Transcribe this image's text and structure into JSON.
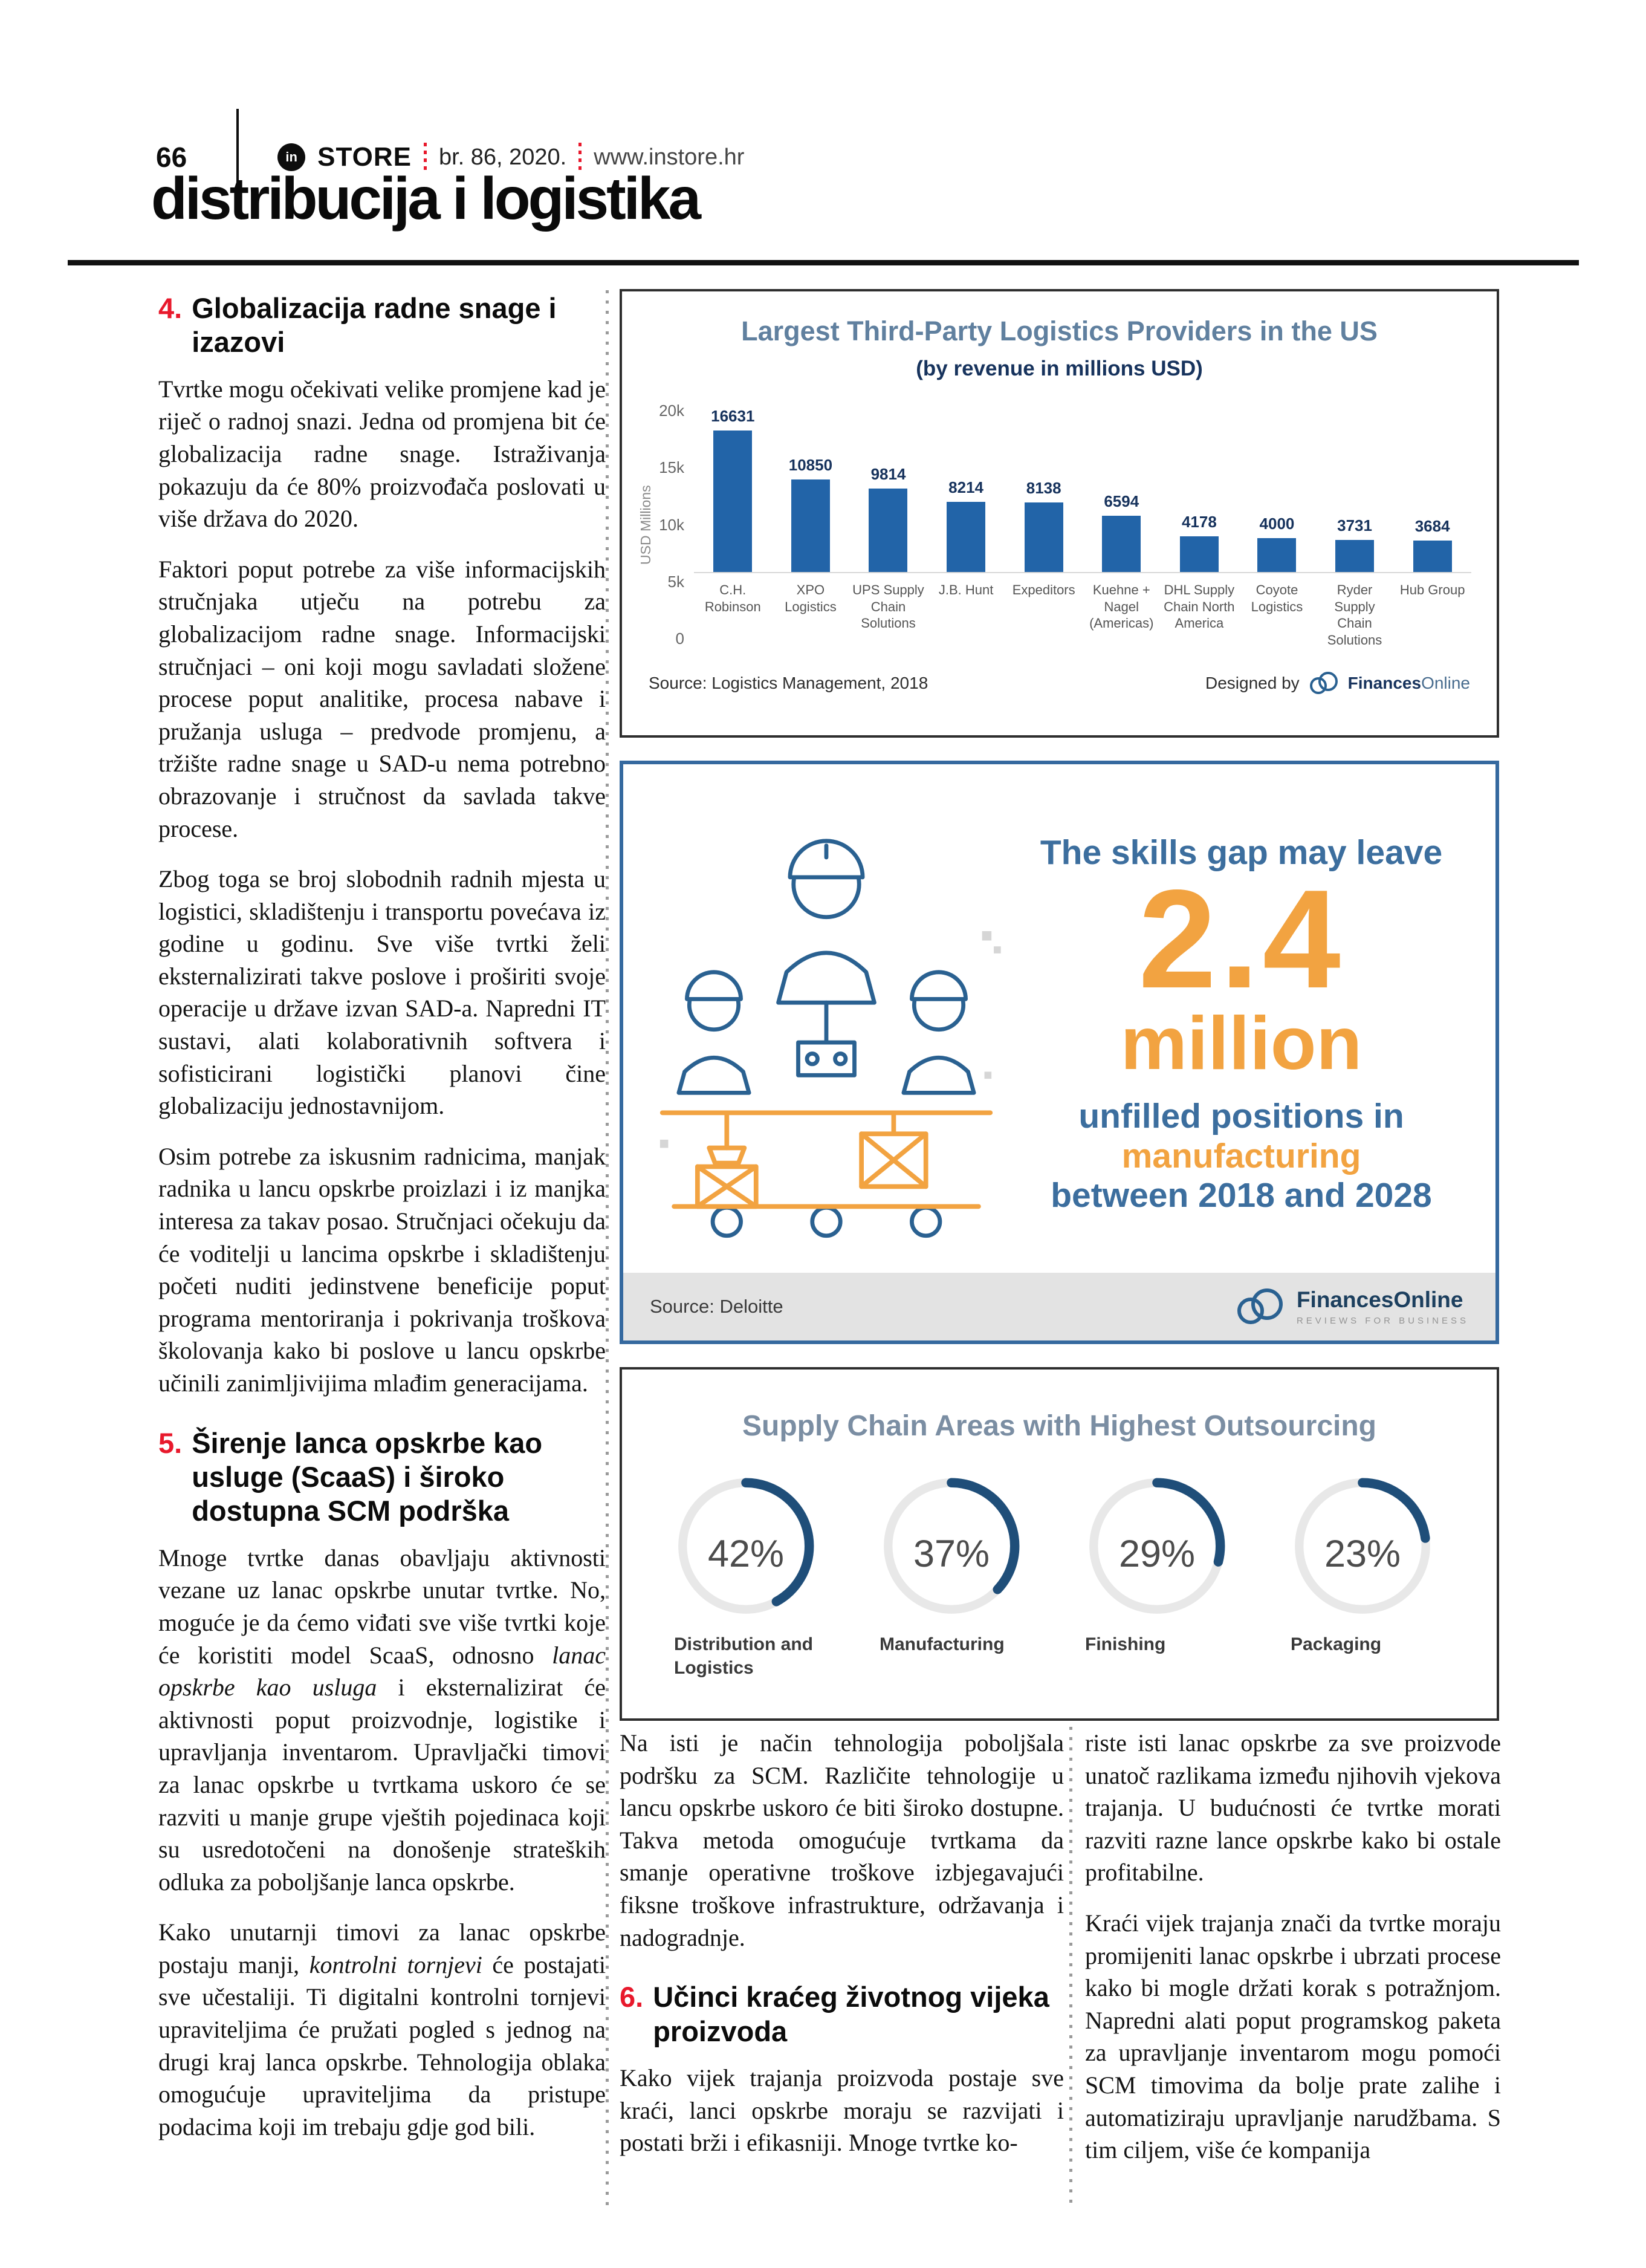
{
  "header": {
    "page_number": "66",
    "brand_badge": "in",
    "brand": "STORE",
    "issue": "br. 86, 2020.",
    "website": "www.instore.hr",
    "accent_red": "#e8192c"
  },
  "page_title": "distribucija i logistika",
  "articles": {
    "left": [
      {
        "type": "heading",
        "number": "4.",
        "text": "Globalizacija radne snage i izazovi"
      },
      {
        "type": "p",
        "segs": [
          {
            "t": "Tvrtke mogu očekivati velike promjene kad je riječ o radnoj snazi. Jedna od promjena bit će globalizacija radne snage. Istraživanja pokazuju da će 80% proizvođača poslovati u više država do 2020."
          }
        ]
      },
      {
        "type": "p",
        "segs": [
          {
            "t": "Faktori poput potrebe za više informacijskih stručnjaka utječu na potrebu za globalizacijom radne snage. Informacijski stručnjaci – oni koji mogu savladati složene procese poput analitike, procesa nabave i pružanja usluga – predvode promjenu, a tržište radne snage u SAD-u nema potrebno obrazovanje i stručnost da savlada takve procese."
          }
        ]
      },
      {
        "type": "p",
        "segs": [
          {
            "t": "Zbog toga se broj slobodnih radnih mjesta u logistici, skladištenju i transportu povećava iz godine u godinu. Sve više tvrtki želi eksternalizirati takve poslove i proširiti svoje operacije u države izvan SAD-a. Napredni IT sustavi, alati kolaborativnih softvera i sofisticirani logistički planovi čine globalizaciju jednostavnijom."
          }
        ]
      },
      {
        "type": "p",
        "segs": [
          {
            "t": "Osim potrebe za iskusnim radnicima, manjak radnika u lancu opskrbe proizlazi i iz manjka interesa za takav posao. Stručnjaci očekuju da će voditelji u lancima opskrbe i skladištenju početi nuditi jedinstvene beneficije poput programa mentoriranja i pokrivanja troškova školovanja kako bi poslove u lancu opskrbe učinili zanimljivijima mlađim generacijama."
          }
        ]
      },
      {
        "type": "heading",
        "number": "5.",
        "text": "Širenje lanca opskrbe kao usluge (ScaaS) i široko dostupna SCM podrška"
      },
      {
        "type": "p",
        "segs": [
          {
            "t": "Mnoge tvrtke danas obavljaju aktivnosti vezane uz lanac opskrbe unutar tvrtke. No, moguće je da ćemo viđati sve više tvrtki koje će koristiti model ScaaS, odnosno "
          },
          {
            "t": "lanac opskrbe kao usluga",
            "i": true
          },
          {
            "t": " i eksternalizirat će aktivnosti poput proizvodnje, logistike i upravljanja inventarom. Upravljački timovi za lanac opskrbe u tvrtkama uskoro će se razviti u manje grupe vještih pojedinaca koji su usredotočeni na donošenje strateških odluka za poboljšanje lanca opskrbe."
          }
        ]
      },
      {
        "type": "p",
        "segs": [
          {
            "t": "Kako unutarnji timovi za lanac opskrbe postaju manji, "
          },
          {
            "t": "kontrolni tornjevi",
            "i": true
          },
          {
            "t": " će postajati sve učestaliji. Ti digitalni kontrolni tornjevi upraviteljima će pružati pogled s jednog na drugi kraj lanca opskrbe. Tehnologija oblaka omogućuje upraviteljima da pristupe podacima koji im trebaju gdje god bili."
          }
        ]
      }
    ],
    "middle": [
      {
        "type": "p",
        "segs": [
          {
            "t": "Na isti je način tehnologija poboljšala podršku za SCM. Različite tehnologije u lancu opskrbe uskoro će biti široko dostupne. Takva metoda omogućuje tvrtkama da smanje operativne troškove izbjegavajući fiksne troškove infrastrukture, održavanja i nadogradnje."
          }
        ]
      },
      {
        "type": "heading",
        "number": "6.",
        "text": "Učinci kraćeg životnog vijeka proizvoda"
      },
      {
        "type": "p",
        "segs": [
          {
            "t": "Kako vijek trajanja proizvoda postaje sve kraći, lanci opskrbe moraju se razvijati i postati brži i efikasniji. Mnoge tvrtke ko-"
          }
        ]
      }
    ],
    "right": [
      {
        "type": "p",
        "segs": [
          {
            "t": "riste isti lanac opskrbe za sve proizvode unatoč razlikama između njihovih vjekova trajanja. U budućnosti će tvrtke morati razviti razne lance opskrbe kako bi ostale profitabilne."
          }
        ]
      },
      {
        "type": "p",
        "segs": [
          {
            "t": "Kraći vijek trajanja znači da tvrtke moraju promijeniti lanac opskrbe i ubrzati procese kako bi mogle držati korak s potražnjom. Napredni alati poput programskog paketa za upravljanje inventarom mogu pomoći SCM timovima da bolje prate zalihe i automatiziraju upravljanje narudžbama. S tim ciljem, više će kompanija"
          }
        ]
      }
    ]
  },
  "chart_data": [
    {
      "type": "bar",
      "title": "Largest Third-Party Logistics Providers in the US",
      "subtitle": "(by revenue in millions USD)",
      "ylabel": "USD Millions",
      "ylim": [
        0,
        20000
      ],
      "yticks": [
        "20k",
        "15k",
        "10k",
        "5k",
        "0"
      ],
      "categories": [
        "C.H. Robinson",
        "XPO Logistics",
        "UPS Supply Chain Solutions",
        "J.B. Hunt",
        "Expeditors",
        "Kuehne + Nagel (Americas)",
        "DHL Supply Chain North America",
        "Coyote Logistics",
        "Ryder Supply Chain Solutions",
        "Hub Group"
      ],
      "values": [
        16631,
        10850,
        9814,
        8214,
        8138,
        6594,
        4178,
        4000,
        3731,
        3684
      ],
      "bar_color": "#2264a8",
      "grid": false,
      "source": "Source: Logistics Management, 2018",
      "credit": "Designed by",
      "credit_brand_bold": "Finances",
      "credit_brand_light": "Online"
    },
    {
      "type": "infographic",
      "lines": [
        {
          "text": "The skills gap may leave",
          "color": "blue",
          "size": "normal"
        },
        {
          "text": "2.4",
          "color": "orange",
          "size": "huge"
        },
        {
          "text": "million",
          "color": "orange",
          "size": "large"
        },
        {
          "text": "unfilled positions in",
          "color": "blue",
          "size": "normal"
        },
        {
          "text": "manufacturing",
          "color": "orange",
          "size": "normal"
        },
        {
          "text": "between 2018 and 2028",
          "color": "blue",
          "size": "normal"
        }
      ],
      "colors": {
        "blue": "#3c6e9e",
        "orange": "#f2a341"
      },
      "source": "Source: Deloitte",
      "brand": "FinancesOnline",
      "brand_tagline": "REVIEWS FOR BUSINESS"
    },
    {
      "type": "donut",
      "title": "Supply Chain Areas with Highest Outsourcing",
      "categories": [
        "Distribution and Logistics",
        "Manufacturing",
        "Finishing",
        "Packaging"
      ],
      "values": [
        42,
        37,
        29,
        23
      ],
      "unit": "%",
      "arc_color": "#1f4e79",
      "ring_color": "#e8e8e8"
    }
  ]
}
